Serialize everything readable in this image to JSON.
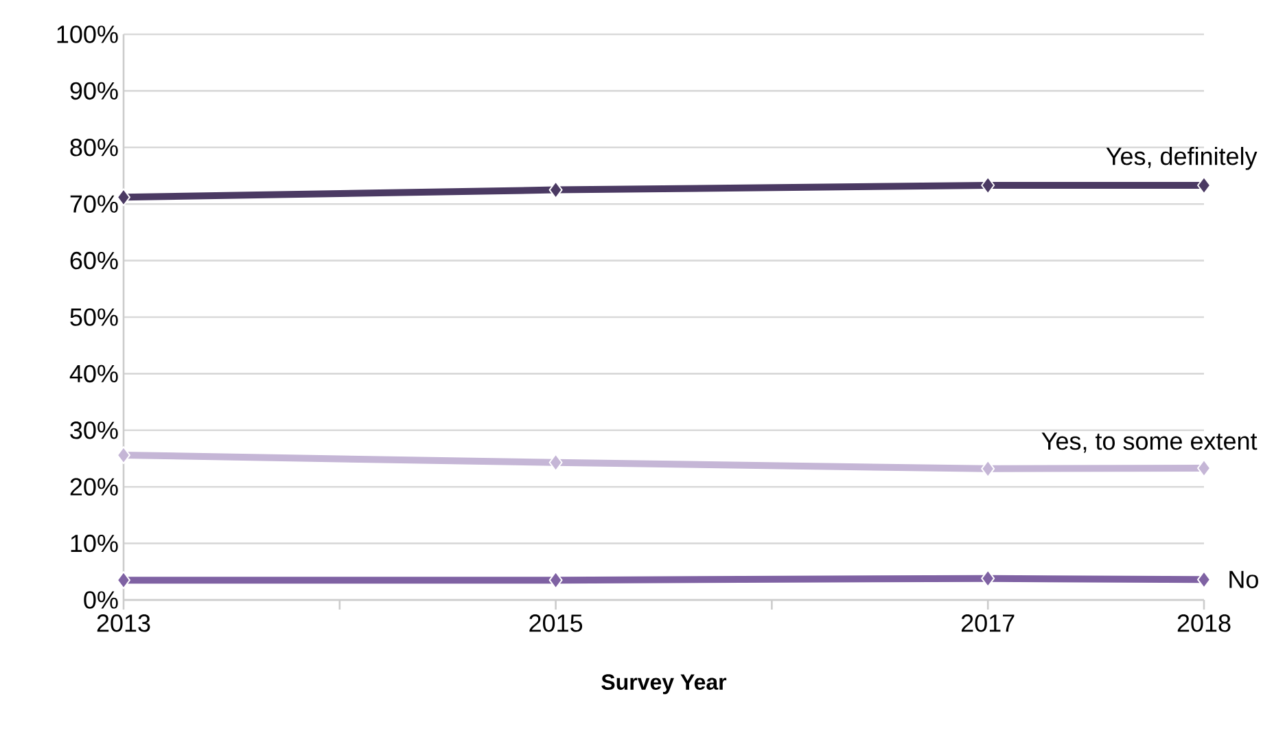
{
  "chart_data": {
    "type": "line",
    "xlabel": "Survey Year",
    "x": [
      2013,
      2015,
      2017,
      2018
    ],
    "series": [
      {
        "name": "Yes, definitely",
        "color": "#4b3a63",
        "values": [
          71.2,
          72.5,
          73.3,
          73.3
        ]
      },
      {
        "name": "Yes, to some extent",
        "color": "#c5b6d6",
        "values": [
          25.6,
          24.3,
          23.2,
          23.3
        ]
      },
      {
        "name": "No",
        "color": "#7f62a3",
        "values": [
          3.5,
          3.5,
          3.8,
          3.6
        ]
      }
    ],
    "xlim": [
      2013,
      2018
    ],
    "xticks": [
      2013,
      {
        "value": 2014,
        "label": null
      },
      2015,
      {
        "value": 2016,
        "label": null
      },
      2017,
      2018
    ],
    "ylim": [
      0,
      100
    ],
    "yticks": [
      {
        "value": 0,
        "label": "0%"
      },
      {
        "value": 10,
        "label": "10%"
      },
      {
        "value": 20,
        "label": "20%"
      },
      {
        "value": 30,
        "label": "30%"
      },
      {
        "value": 40,
        "label": "40%"
      },
      {
        "value": 50,
        "label": "50%"
      },
      {
        "value": 60,
        "label": "60%"
      },
      {
        "value": 70,
        "label": "70%"
      },
      {
        "value": 80,
        "label": "80%"
      },
      {
        "value": 90,
        "label": "90%"
      },
      {
        "value": 100,
        "label": "100%"
      }
    ],
    "grid": "y",
    "legend": false,
    "marker": "diamond",
    "line_style": "solid"
  }
}
